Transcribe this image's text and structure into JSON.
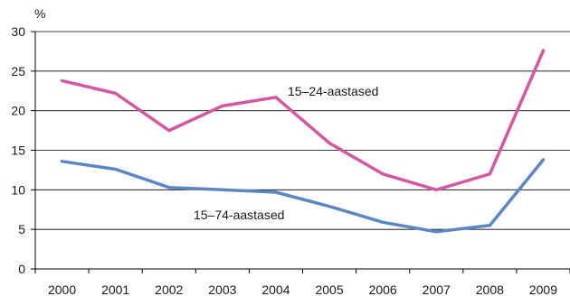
{
  "chart_data": {
    "type": "line",
    "title": "",
    "xlabel": "",
    "ylabel": "%",
    "ylim": [
      0,
      30
    ],
    "yticks": [
      0,
      5,
      10,
      15,
      20,
      25,
      30
    ],
    "grid": true,
    "categories": [
      "2000",
      "2001",
      "2002",
      "2003",
      "2004",
      "2005",
      "2006",
      "2007",
      "2008",
      "2009"
    ],
    "series": [
      {
        "name": "15–24-aastased",
        "color": "#d4589f",
        "values": [
          23.8,
          22.2,
          17.5,
          20.6,
          21.7,
          15.9,
          12.0,
          10.0,
          12.0,
          27.6
        ]
      },
      {
        "name": "15–74-aastased",
        "color": "#5b87c5",
        "values": [
          13.6,
          12.6,
          10.3,
          10.0,
          9.7,
          7.9,
          5.9,
          4.7,
          5.5,
          13.8
        ]
      }
    ]
  }
}
